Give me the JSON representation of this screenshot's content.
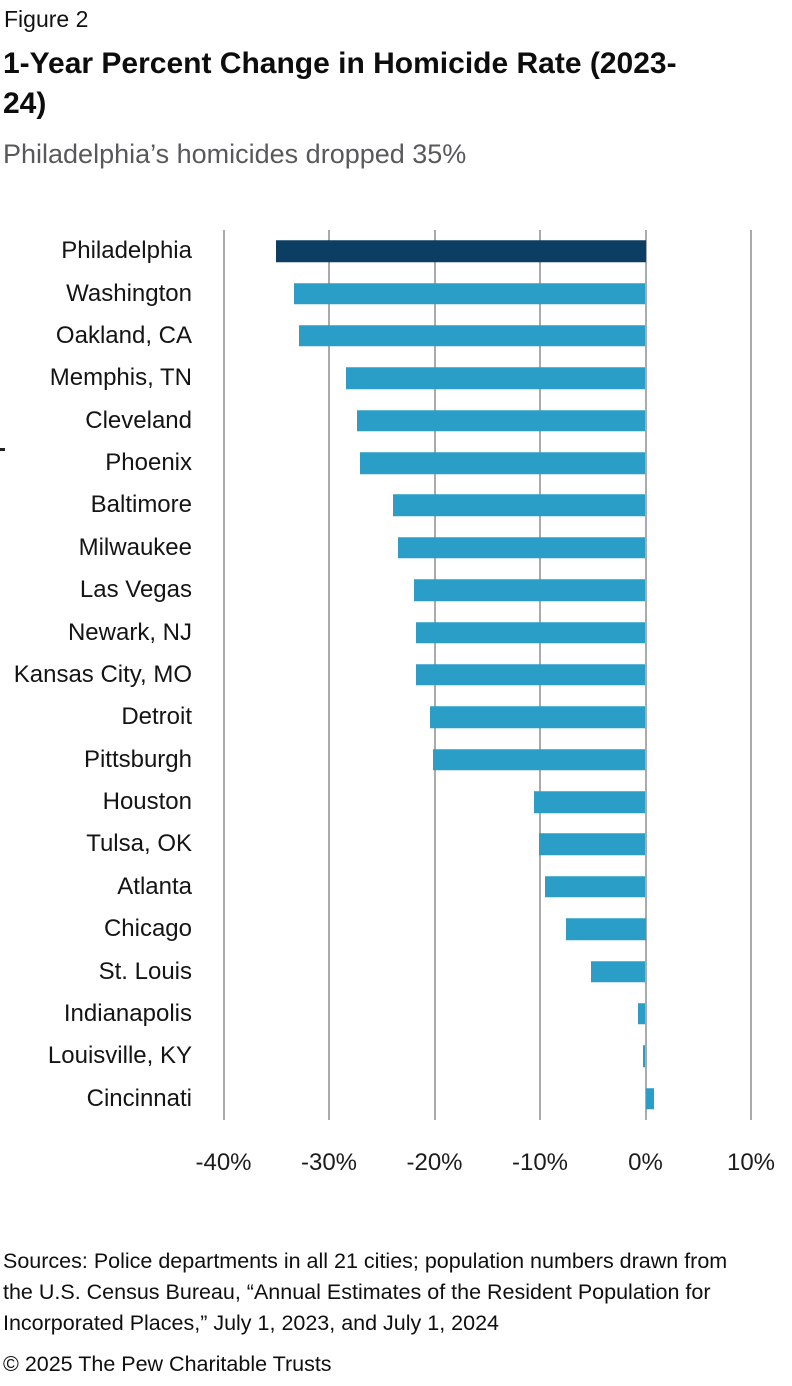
{
  "header": {
    "figure_label": "Figure 2",
    "title": "1-Year Percent Change in Homicide Rate (2023-24)",
    "subtitle": "Philadelphia’s homicides dropped 35%"
  },
  "chart_data": {
    "type": "bar",
    "orientation": "horizontal",
    "title": "1-Year Percent Change in Homicide Rate (2023-24)",
    "subtitle": "Philadelphia’s homicides dropped 35%",
    "xlabel": "",
    "ylabel": "",
    "categories": [
      "Philadelphia",
      "Washington",
      "Oakland, CA",
      "Memphis, TN",
      "Cleveland",
      "Phoenix",
      "Baltimore",
      "Milwaukee",
      "Las Vegas",
      "Newark, NJ",
      "Kansas City, MO",
      "Detroit",
      "Pittsburgh",
      "Houston",
      "Tulsa, OK",
      "Atlanta",
      "Chicago",
      "St. Louis",
      "Indianapolis",
      "Louisville, KY",
      "Cincinnati"
    ],
    "values": [
      -35.0,
      -33.3,
      -32.8,
      -28.4,
      -27.3,
      -27.1,
      -23.9,
      -23.5,
      -21.9,
      -21.8,
      -21.8,
      -20.4,
      -20.1,
      -10.6,
      -10.1,
      -9.5,
      -7.5,
      -5.2,
      -0.7,
      -0.2,
      0.8
    ],
    "unit": "%",
    "highlight_category": "Philadelphia",
    "x_ticks": [
      -40,
      -30,
      -20,
      -10,
      0,
      10
    ],
    "x_tick_labels": [
      "-40%",
      "-30%",
      "-20%",
      "-10%",
      "0%",
      "10%"
    ],
    "xlim": [
      -41.8,
      13.9
    ],
    "grid": "vertical",
    "legend": "none",
    "colors": {
      "bar": "#2a9ec6",
      "highlight_bar": "#0b3e62",
      "gridline": "#a8aaab"
    }
  },
  "footer": {
    "sources_lines": [
      "Sources: Police departments in all 21 cities; population numbers drawn from",
      "the U.S. Census Bureau, “Annual Estimates of the Resident Population for",
      "Incorporated Places,” July 1, 2023, and July 1, 2024"
    ],
    "copyright": "© 2025 The Pew Charitable Trusts"
  }
}
